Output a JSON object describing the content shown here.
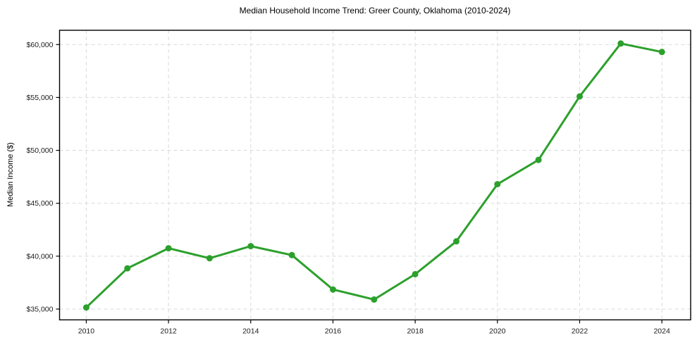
{
  "figure": {
    "title": "Median Household Income Trend: Greer County, Oklahoma (2010-2024)",
    "ylabel": "Median Income ($)",
    "background_color": "#ffffff"
  },
  "chart_data": {
    "type": "line",
    "title": "Median Household Income Trend: Greer County, Oklahoma (2010-2024)",
    "xlabel": "",
    "ylabel": "Median Income ($)",
    "x": [
      2010,
      2011,
      2012,
      2013,
      2014,
      2015,
      2016,
      2017,
      2018,
      2019,
      2020,
      2021,
      2022,
      2023,
      2024
    ],
    "y": [
      35150,
      38850,
      40750,
      39800,
      40950,
      40100,
      36850,
      35900,
      38300,
      41400,
      46800,
      49100,
      55100,
      60100,
      59300
    ],
    "xlim": [
      2009.35,
      2024.7
    ],
    "ylim": [
      33980,
      61350
    ],
    "xticks": [
      2010,
      2012,
      2014,
      2016,
      2018,
      2020,
      2022,
      2024
    ],
    "xtick_labels": [
      "2010",
      "2012",
      "2014",
      "2016",
      "2018",
      "2020",
      "2022",
      "2024"
    ],
    "yticks": [
      35000,
      40000,
      45000,
      50000,
      55000,
      60000
    ],
    "ytick_labels": [
      "$35,000",
      "$40,000",
      "$45,000",
      "$50,000",
      "$55,000",
      "$60,000"
    ],
    "grid": true,
    "grid_style": "dashed",
    "legend": false,
    "line_color": "#2ca02c",
    "marker": "o",
    "marker_size": 9,
    "line_width": 3,
    "grid_color": "#d9d9d9",
    "spine_color": "#000000",
    "tick_text_color": "#1a1a1a"
  }
}
